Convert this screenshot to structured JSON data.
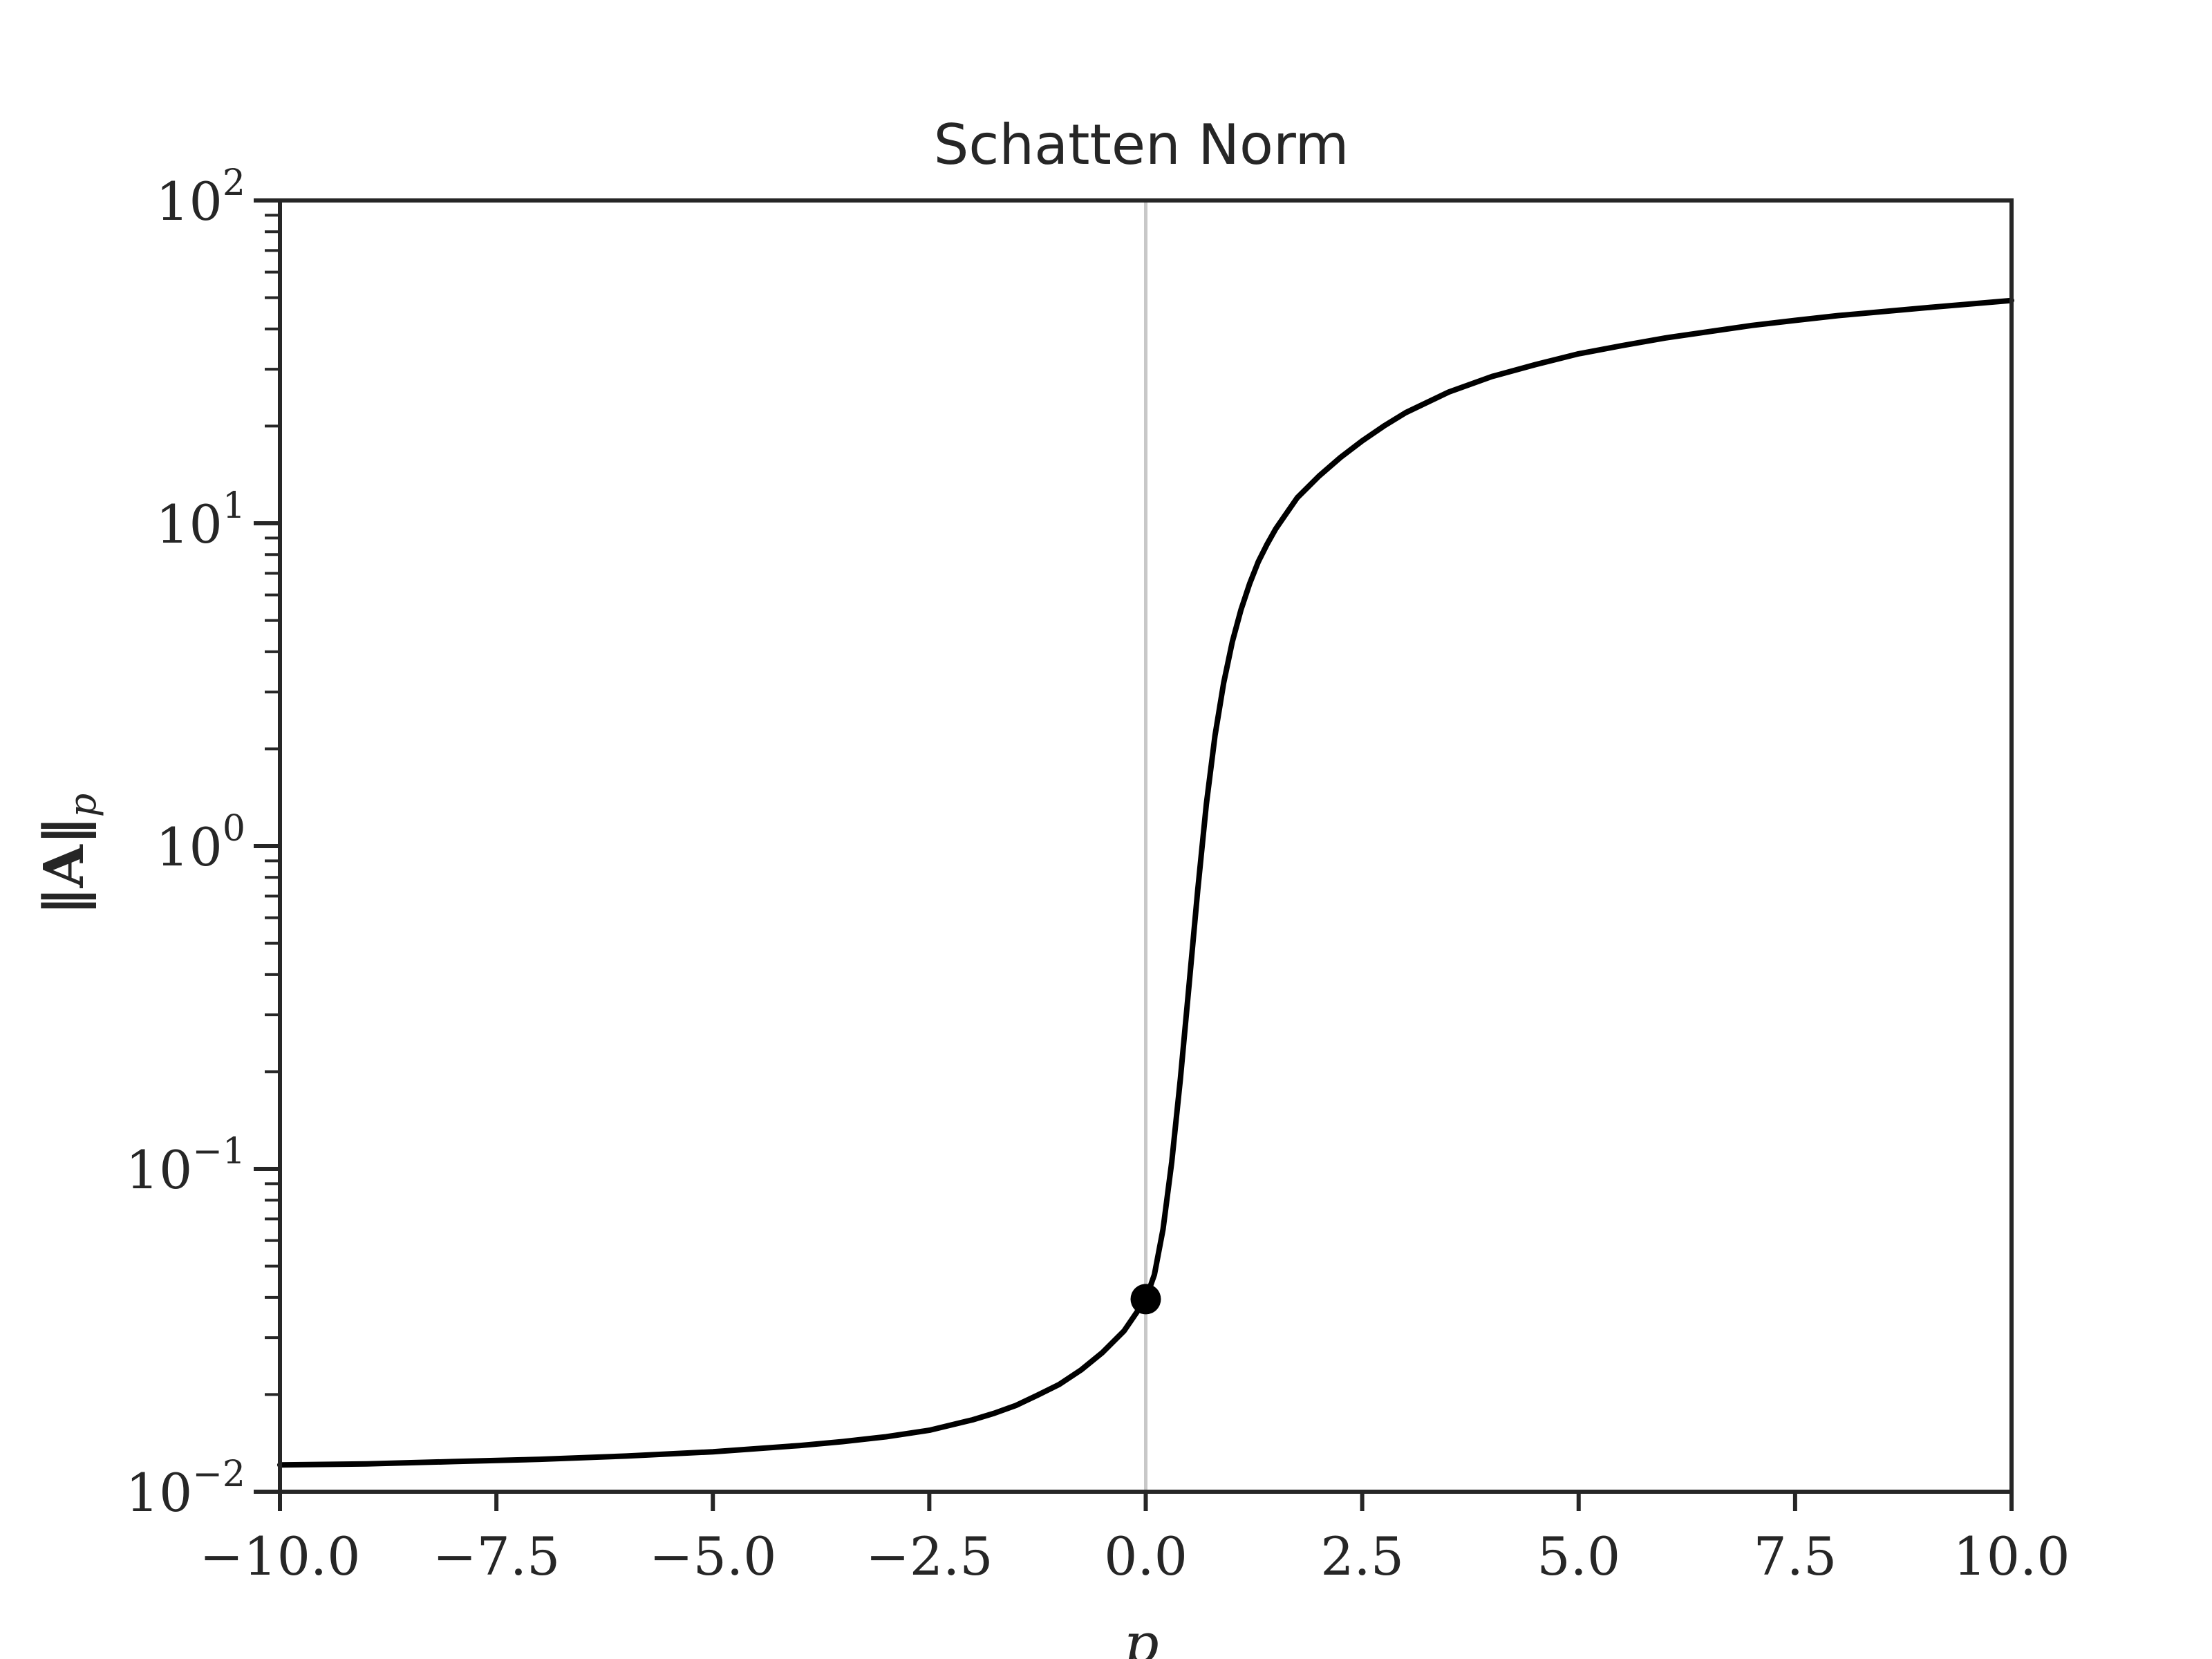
{
  "chart_data": {
    "type": "line",
    "title": "Schatten Norm",
    "xlabel": "p",
    "ylabel": "‖A‖",
    "ylabel_subscript": "p",
    "xlim": [
      -10,
      10
    ],
    "ylim": [
      0.01,
      100
    ],
    "yscale": "log",
    "grid": false,
    "legend": "none",
    "x_ticks": [
      -10,
      -7.5,
      -5,
      -2.5,
      0,
      2.5,
      5,
      7.5,
      10
    ],
    "x_tick_labels": [
      "−10.0",
      "−7.5",
      "−5.0",
      "−2.5",
      "0.0",
      "2.5",
      "5.0",
      "7.5",
      "10.0"
    ],
    "y_ticks": [
      0.01,
      0.1,
      1,
      10,
      100
    ],
    "y_tick_labels": [
      {
        "base": "10",
        "exp": "−2"
      },
      {
        "base": "10",
        "exp": "−1"
      },
      {
        "base": "10",
        "exp": "0"
      },
      {
        "base": "10",
        "exp": "1"
      },
      {
        "base": "10",
        "exp": "2"
      }
    ],
    "reference_line_x": 0,
    "series": [
      {
        "color": "#000000",
        "x": [
          -10,
          -9,
          -8,
          -7,
          -6,
          -5,
          -4,
          -3.5,
          -3,
          -2.5,
          -2,
          -1.75,
          -1.5,
          -1.25,
          -1,
          -0.75,
          -0.5,
          -0.25,
          0,
          0.1,
          0.2,
          0.3,
          0.4,
          0.5,
          0.6,
          0.7,
          0.8,
          0.9,
          1.0,
          1.1,
          1.2,
          1.3,
          1.4,
          1.5,
          1.6,
          1.75,
          2.0,
          2.25,
          2.5,
          2.75,
          3.0,
          3.5,
          4.0,
          4.5,
          5.0,
          5.5,
          6.0,
          7.0,
          7.5,
          8.0,
          9.0,
          10.0
        ],
        "y": [
          0.0121,
          0.0122,
          0.0124,
          0.0126,
          0.0129,
          0.0133,
          0.0139,
          0.0143,
          0.0148,
          0.0155,
          0.0167,
          0.0175,
          0.0185,
          0.0199,
          0.0215,
          0.0238,
          0.027,
          0.0315,
          0.0395,
          0.047,
          0.065,
          0.105,
          0.19,
          0.37,
          0.73,
          1.35,
          2.2,
          3.2,
          4.3,
          5.4,
          6.5,
          7.6,
          8.6,
          9.6,
          10.5,
          12.0,
          14.0,
          16.0,
          18.0,
          20.0,
          22.0,
          25.5,
          28.5,
          31.0,
          33.5,
          35.5,
          37.5,
          41.0,
          42.5,
          44.0,
          46.5,
          49.0
        ]
      }
    ],
    "highlight_point": {
      "x": 0,
      "y": 0.0395
    }
  }
}
